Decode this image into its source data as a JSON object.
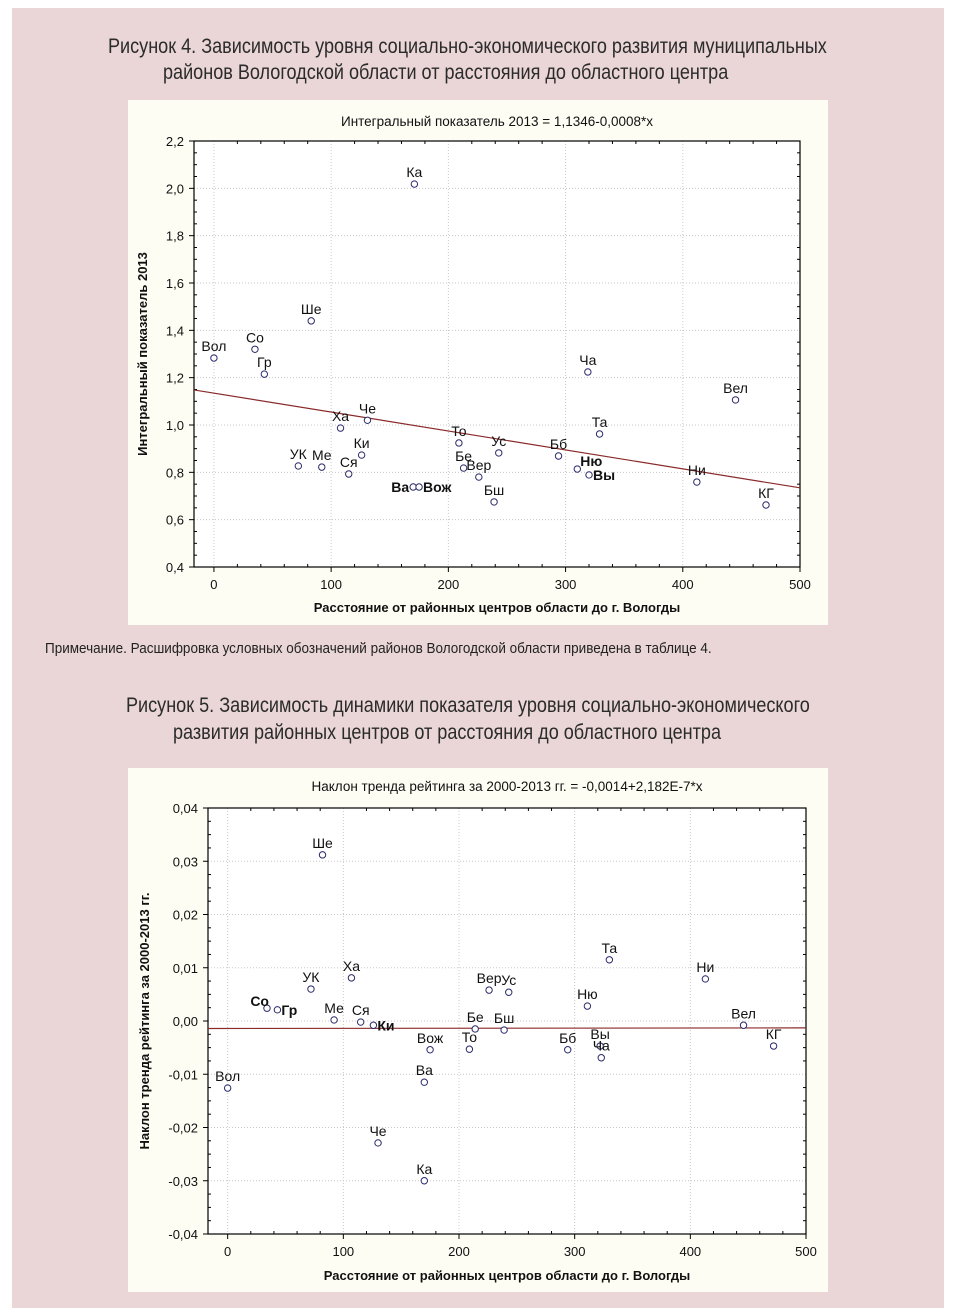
{
  "figure4": {
    "title_line1": "Рисунок 4. Зависимость уровня социально-экономического развития муниципальных",
    "title_line2": "районов Вологодской области от расстояния до областного центра"
  },
  "note": "Примечание. Расшифровка условных обозначений районов Вологодской области приведена в таблице 4.",
  "figure5": {
    "title_line1": "Рисунок 5. Зависимость динамики показателя уровня социально-экономического",
    "title_line2": "развития районных центров от расстояния до областного центра"
  },
  "colors": {
    "page_bg": "#ead6d6",
    "panel_bg": "#fefdf4",
    "trend": "#8b2a2a",
    "marker": "#2a2a6a"
  },
  "chart_data": [
    {
      "type": "scatter",
      "title": "Интегральный показатель 2013 = 1,1346-0,0008*x",
      "xlabel": "Расстояние от районных центров области до г. Вологды",
      "ylabel": "Интегральный показатель 2013",
      "xlim": [
        -17,
        500
      ],
      "ylim": [
        0.4,
        2.2
      ],
      "xticks": [
        0,
        100,
        200,
        300,
        400,
        500
      ],
      "xtick_labels": [
        "0",
        "100",
        "200",
        "300",
        "400",
        "500"
      ],
      "yticks": [
        0.4,
        0.6,
        0.8,
        1.0,
        1.2,
        1.4,
        1.6,
        1.8,
        2.0,
        2.2
      ],
      "ytick_labels": [
        "0,4",
        "0,6",
        "0,8",
        "1,0",
        "1,2",
        "1,4",
        "1,6",
        "1,8",
        "2,0",
        "2,2"
      ],
      "grid": true,
      "trend": {
        "intercept": 1.1346,
        "slope": -0.0008
      },
      "points": [
        {
          "label": "Вол",
          "x": 0,
          "y": 1.283
        },
        {
          "label": "Со",
          "x": 35,
          "y": 1.32
        },
        {
          "label": "Гр",
          "x": 43,
          "y": 1.215
        },
        {
          "label": "Ше",
          "x": 83,
          "y": 1.44
        },
        {
          "label": "Ка",
          "x": 171,
          "y": 2.018
        },
        {
          "label": "Ха",
          "x": 108,
          "y": 0.987
        },
        {
          "label": "Че",
          "x": 131,
          "y": 1.02
        },
        {
          "label": "УК",
          "x": 72,
          "y": 0.827
        },
        {
          "label": "Ме",
          "x": 92,
          "y": 0.822
        },
        {
          "label": "Ки",
          "x": 126,
          "y": 0.873
        },
        {
          "label": "Ся",
          "x": 115,
          "y": 0.793
        },
        {
          "label": "Ва",
          "x": 170,
          "y": 0.738,
          "bold": true,
          "label_pos": "left"
        },
        {
          "label": "Вож",
          "x": 175,
          "y": 0.738,
          "bold": true,
          "label_pos": "right"
        },
        {
          "label": "То",
          "x": 209,
          "y": 0.924
        },
        {
          "label": "Бе",
          "x": 213,
          "y": 0.818
        },
        {
          "label": "Вер",
          "x": 226,
          "y": 0.78
        },
        {
          "label": "Ус",
          "x": 243,
          "y": 0.882
        },
        {
          "label": "Бш",
          "x": 239,
          "y": 0.675
        },
        {
          "label": "Бб",
          "x": 294,
          "y": 0.869
        },
        {
          "label": "Ню",
          "x": 310,
          "y": 0.814,
          "bold": true,
          "label_pos": "upright"
        },
        {
          "label": "Вы",
          "x": 320,
          "y": 0.789,
          "bold": true,
          "label_pos": "right"
        },
        {
          "label": "Ча",
          "x": 319,
          "y": 1.224
        },
        {
          "label": "Та",
          "x": 329,
          "y": 0.962
        },
        {
          "label": "Ни",
          "x": 412,
          "y": 0.759
        },
        {
          "label": "Вел",
          "x": 445,
          "y": 1.106
        },
        {
          "label": "КГ",
          "x": 471,
          "y": 0.662
        }
      ]
    },
    {
      "type": "scatter",
      "title": "Наклон тренда рейтинга за 2000-2013 гг. = -0,0014+2,182E-7*x",
      "xlabel": "Расстояние от районных центров области до г. Вологды",
      "ylabel": "Наклон тренда рейтинга за 2000-2013 гг.",
      "xlim": [
        -17,
        500
      ],
      "ylim": [
        -0.04,
        0.04
      ],
      "xticks": [
        0,
        100,
        200,
        300,
        400,
        500
      ],
      "xtick_labels": [
        "0",
        "100",
        "200",
        "300",
        "400",
        "500"
      ],
      "yticks": [
        -0.04,
        -0.03,
        -0.02,
        -0.01,
        0,
        0.01,
        0.02,
        0.03,
        0.04
      ],
      "ytick_labels": [
        "-0,04",
        "-0,03",
        "-0,02",
        "-0,01",
        "0,00",
        "0,01",
        "0,02",
        "0,03",
        "0,04"
      ],
      "grid": true,
      "trend": {
        "intercept": -0.0014,
        "slope": 2.182e-07
      },
      "points": [
        {
          "label": "Вол",
          "x": 0,
          "y": -0.0126
        },
        {
          "label": "Со",
          "x": 34,
          "y": 0.0024,
          "bold": true,
          "label_pos": "upleft"
        },
        {
          "label": "Гр",
          "x": 43,
          "y": 0.0021,
          "bold": true,
          "label_pos": "right"
        },
        {
          "label": "УК",
          "x": 72,
          "y": 0.006
        },
        {
          "label": "Ше",
          "x": 82,
          "y": 0.0312
        },
        {
          "label": "Ме",
          "x": 92,
          "y": 0.0002
        },
        {
          "label": "Ха",
          "x": 107,
          "y": 0.0081
        },
        {
          "label": "Ся",
          "x": 115,
          "y": -0.0002
        },
        {
          "label": "Ки",
          "x": 126,
          "y": -0.0008,
          "bold": true,
          "label_pos": "right"
        },
        {
          "label": "Че",
          "x": 130,
          "y": -0.0229
        },
        {
          "label": "Вож",
          "x": 175,
          "y": -0.0054
        },
        {
          "label": "Ва",
          "x": 170,
          "y": -0.0115
        },
        {
          "label": "Ка",
          "x": 170,
          "y": -0.03
        },
        {
          "label": "То",
          "x": 209,
          "y": -0.0053
        },
        {
          "label": "Бе",
          "x": 214,
          "y": -0.0015
        },
        {
          "label": "Вер",
          "x": 226,
          "y": 0.0058
        },
        {
          "label": "Ус",
          "x": 243,
          "y": 0.0054
        },
        {
          "label": "Бш",
          "x": 239,
          "y": -0.0017
        },
        {
          "label": "Бб",
          "x": 294,
          "y": -0.0054
        },
        {
          "label": "Ню",
          "x": 311,
          "y": 0.0028
        },
        {
          "label": "Вы",
          "x": 322,
          "y": -0.0047
        },
        {
          "label": "Ча",
          "x": 323,
          "y": -0.0069
        },
        {
          "label": "Та",
          "x": 330,
          "y": 0.0115
        },
        {
          "label": "Ни",
          "x": 413,
          "y": 0.0079
        },
        {
          "label": "Вел",
          "x": 446,
          "y": -0.0008
        },
        {
          "label": "КГ",
          "x": 472,
          "y": -0.0047
        }
      ]
    }
  ]
}
